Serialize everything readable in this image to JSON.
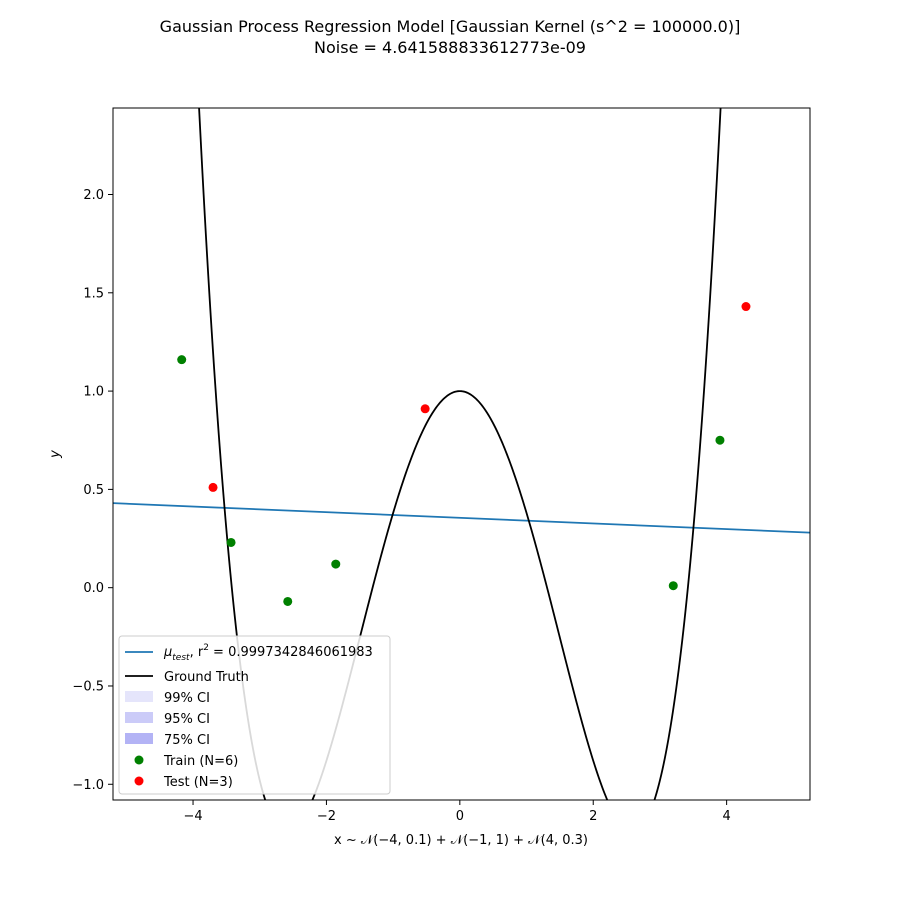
{
  "chart_data": {
    "type": "line",
    "title_line1": "Gaussian Process Regression Model [Gaussian Kernel (s^2 = 100000.0)]",
    "title_line2": "Noise = 4.641588833612773e-09",
    "xlabel": "x ~ 𝒩(−4, 0.1) + 𝒩(−1, 1) + 𝒩(4, 0.3)",
    "ylabel": "y",
    "xlim": [
      -5.2,
      5.25
    ],
    "ylim": [
      -1.08,
      2.44
    ],
    "x_ticks": [
      -4,
      -2,
      0,
      2,
      4
    ],
    "x_tick_labels": [
      "−4",
      "−2",
      "0",
      "2",
      "4"
    ],
    "y_ticks": [
      -1.0,
      -0.5,
      0.0,
      0.5,
      1.0,
      1.5,
      2.0
    ],
    "y_tick_labels": [
      "−1.0",
      "−0.5",
      "0.0",
      "0.5",
      "1.0",
      "1.5",
      "2.0"
    ],
    "grid": false,
    "legend_placement": "lower-left",
    "series": [
      {
        "name": "μ_test, r² = 0.9997342846061983",
        "kind": "line",
        "color": "#1f77b4",
        "x": [
          -5.2,
          5.25
        ],
        "y": [
          0.43,
          0.28
        ]
      },
      {
        "name": "Ground Truth",
        "kind": "line",
        "color": "#000000",
        "function": "0.05x^4 - 0.67x^2 + 1"
      },
      {
        "name": "99% CI",
        "kind": "band",
        "color": "#e5e5fb"
      },
      {
        "name": "95% CI",
        "kind": "band",
        "color": "#cbcbf8"
      },
      {
        "name": "75% CI",
        "kind": "band",
        "color": "#b3b3f5"
      },
      {
        "name": "Train (N=6)",
        "kind": "scatter",
        "color": "#008000",
        "x": [
          -4.17,
          -3.43,
          -2.58,
          -1.86,
          3.2,
          3.9
        ],
        "y": [
          1.16,
          0.23,
          -0.07,
          0.12,
          0.01,
          0.75
        ]
      },
      {
        "name": "Test (N=3)",
        "kind": "scatter",
        "color": "#ff0000",
        "x": [
          -3.7,
          -0.52,
          4.29
        ],
        "y": [
          0.51,
          0.91,
          1.43
        ]
      }
    ],
    "legend": {
      "mu_prefix": "μ",
      "mu_sub": "test",
      "mu_rest": ", r",
      "mu_sup": "2",
      "mu_value": " = 0.9997342846061983",
      "ground_truth": "Ground Truth",
      "ci99": "99% CI",
      "ci95": "95% CI",
      "ci75": "75% CI",
      "train": "Train (N=6)",
      "test": "Test (N=3)"
    }
  }
}
